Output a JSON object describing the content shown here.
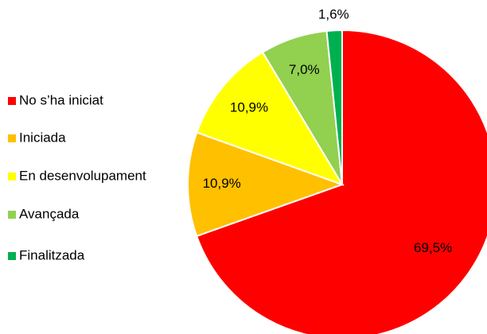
{
  "chart_data": {
    "type": "pie",
    "categories": [
      "No s’ha iniciat",
      "Iniciada",
      "En desenvolupament",
      "Avançada",
      "Finalitzada"
    ],
    "values": [
      69.5,
      10.9,
      10.9,
      7.0,
      1.6
    ],
    "value_labels": [
      "69,5%",
      "10,9%",
      "10,9%",
      "7,0%",
      "1,6%"
    ],
    "colors": [
      "#ff0000",
      "#ffc000",
      "#ffff00",
      "#92d050",
      "#00b050"
    ],
    "legend": "left"
  }
}
